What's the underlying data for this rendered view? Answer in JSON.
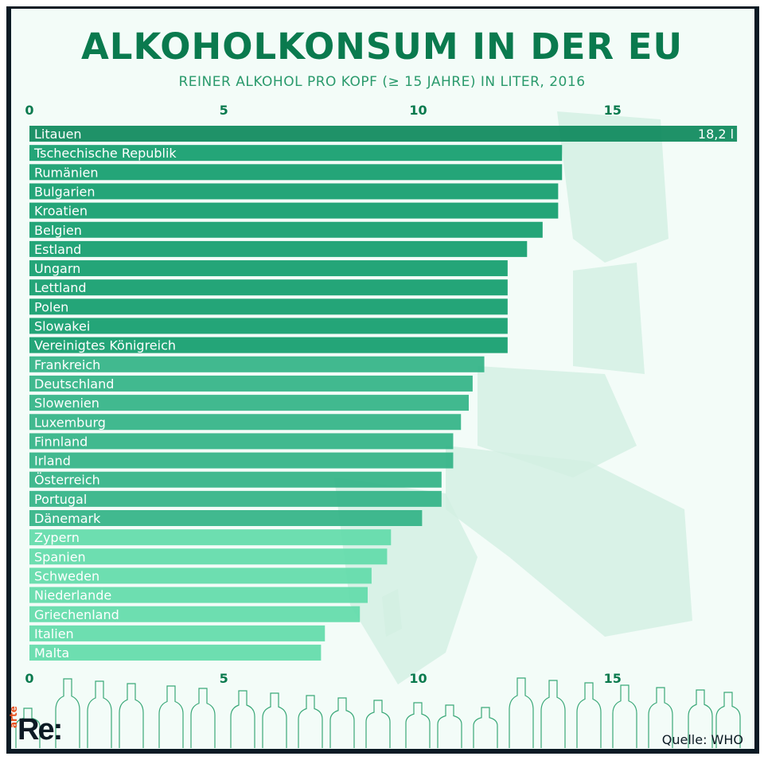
{
  "title": "ALKOHOLKONSUM IN DER EU",
  "subtitle": "REINER ALKOHOL PRO KOPF (≥ 15 JAHRE) IN LITER, 2016",
  "source": "Quelle: WHO",
  "logo": {
    "brand": "arte",
    "name": "Re:"
  },
  "colors": {
    "title": "#0a7a4e",
    "highlight": "#0e8a5c",
    "high": "#139e6e",
    "mid": "#33b487",
    "low": "#62dcaa",
    "frame": "#0c1a24"
  },
  "chart_data": {
    "type": "bar",
    "orientation": "horizontal",
    "title": "ALKOHOLKONSUM IN DER EU",
    "subtitle": "REINER ALKOHOL PRO KOPF (≥ 15 JAHRE) IN LITER, 2016",
    "xlim": [
      0,
      18.2
    ],
    "xticks": [
      0,
      5,
      10,
      15
    ],
    "xtick_labels": [
      "0",
      "5",
      "10",
      "15"
    ],
    "grid": false,
    "annotation": "18,2 l",
    "categories": [
      "Litauen",
      "Tschechische Republik",
      "Rumänien",
      "Bulgarien",
      "Kroatien",
      "Belgien",
      "Estland",
      "Ungarn",
      "Lettland",
      "Polen",
      "Slowakei",
      "Vereinigtes Königreich",
      "Frankreich",
      "Deutschland",
      "Slowenien",
      "Luxemburg",
      "Finnland",
      "Irland",
      "Österreich",
      "Portugal",
      "Dänemark",
      "Zypern",
      "Spanien",
      "Schweden",
      "Niederlande",
      "Griechenland",
      "Italien",
      "Malta"
    ],
    "values": [
      18.2,
      13.7,
      13.7,
      13.6,
      13.6,
      13.2,
      12.8,
      12.3,
      12.3,
      12.3,
      12.3,
      12.3,
      11.7,
      11.4,
      11.3,
      11.1,
      10.9,
      10.9,
      10.6,
      10.6,
      10.1,
      9.3,
      9.2,
      8.8,
      8.7,
      8.5,
      7.6,
      7.5
    ],
    "color_groups": [
      "highlight",
      "high",
      "high",
      "high",
      "high",
      "high",
      "high",
      "high",
      "high",
      "high",
      "high",
      "high",
      "mid",
      "mid",
      "mid",
      "mid",
      "mid",
      "mid",
      "mid",
      "mid",
      "mid",
      "low",
      "low",
      "low",
      "low",
      "low",
      "low",
      "low"
    ]
  }
}
